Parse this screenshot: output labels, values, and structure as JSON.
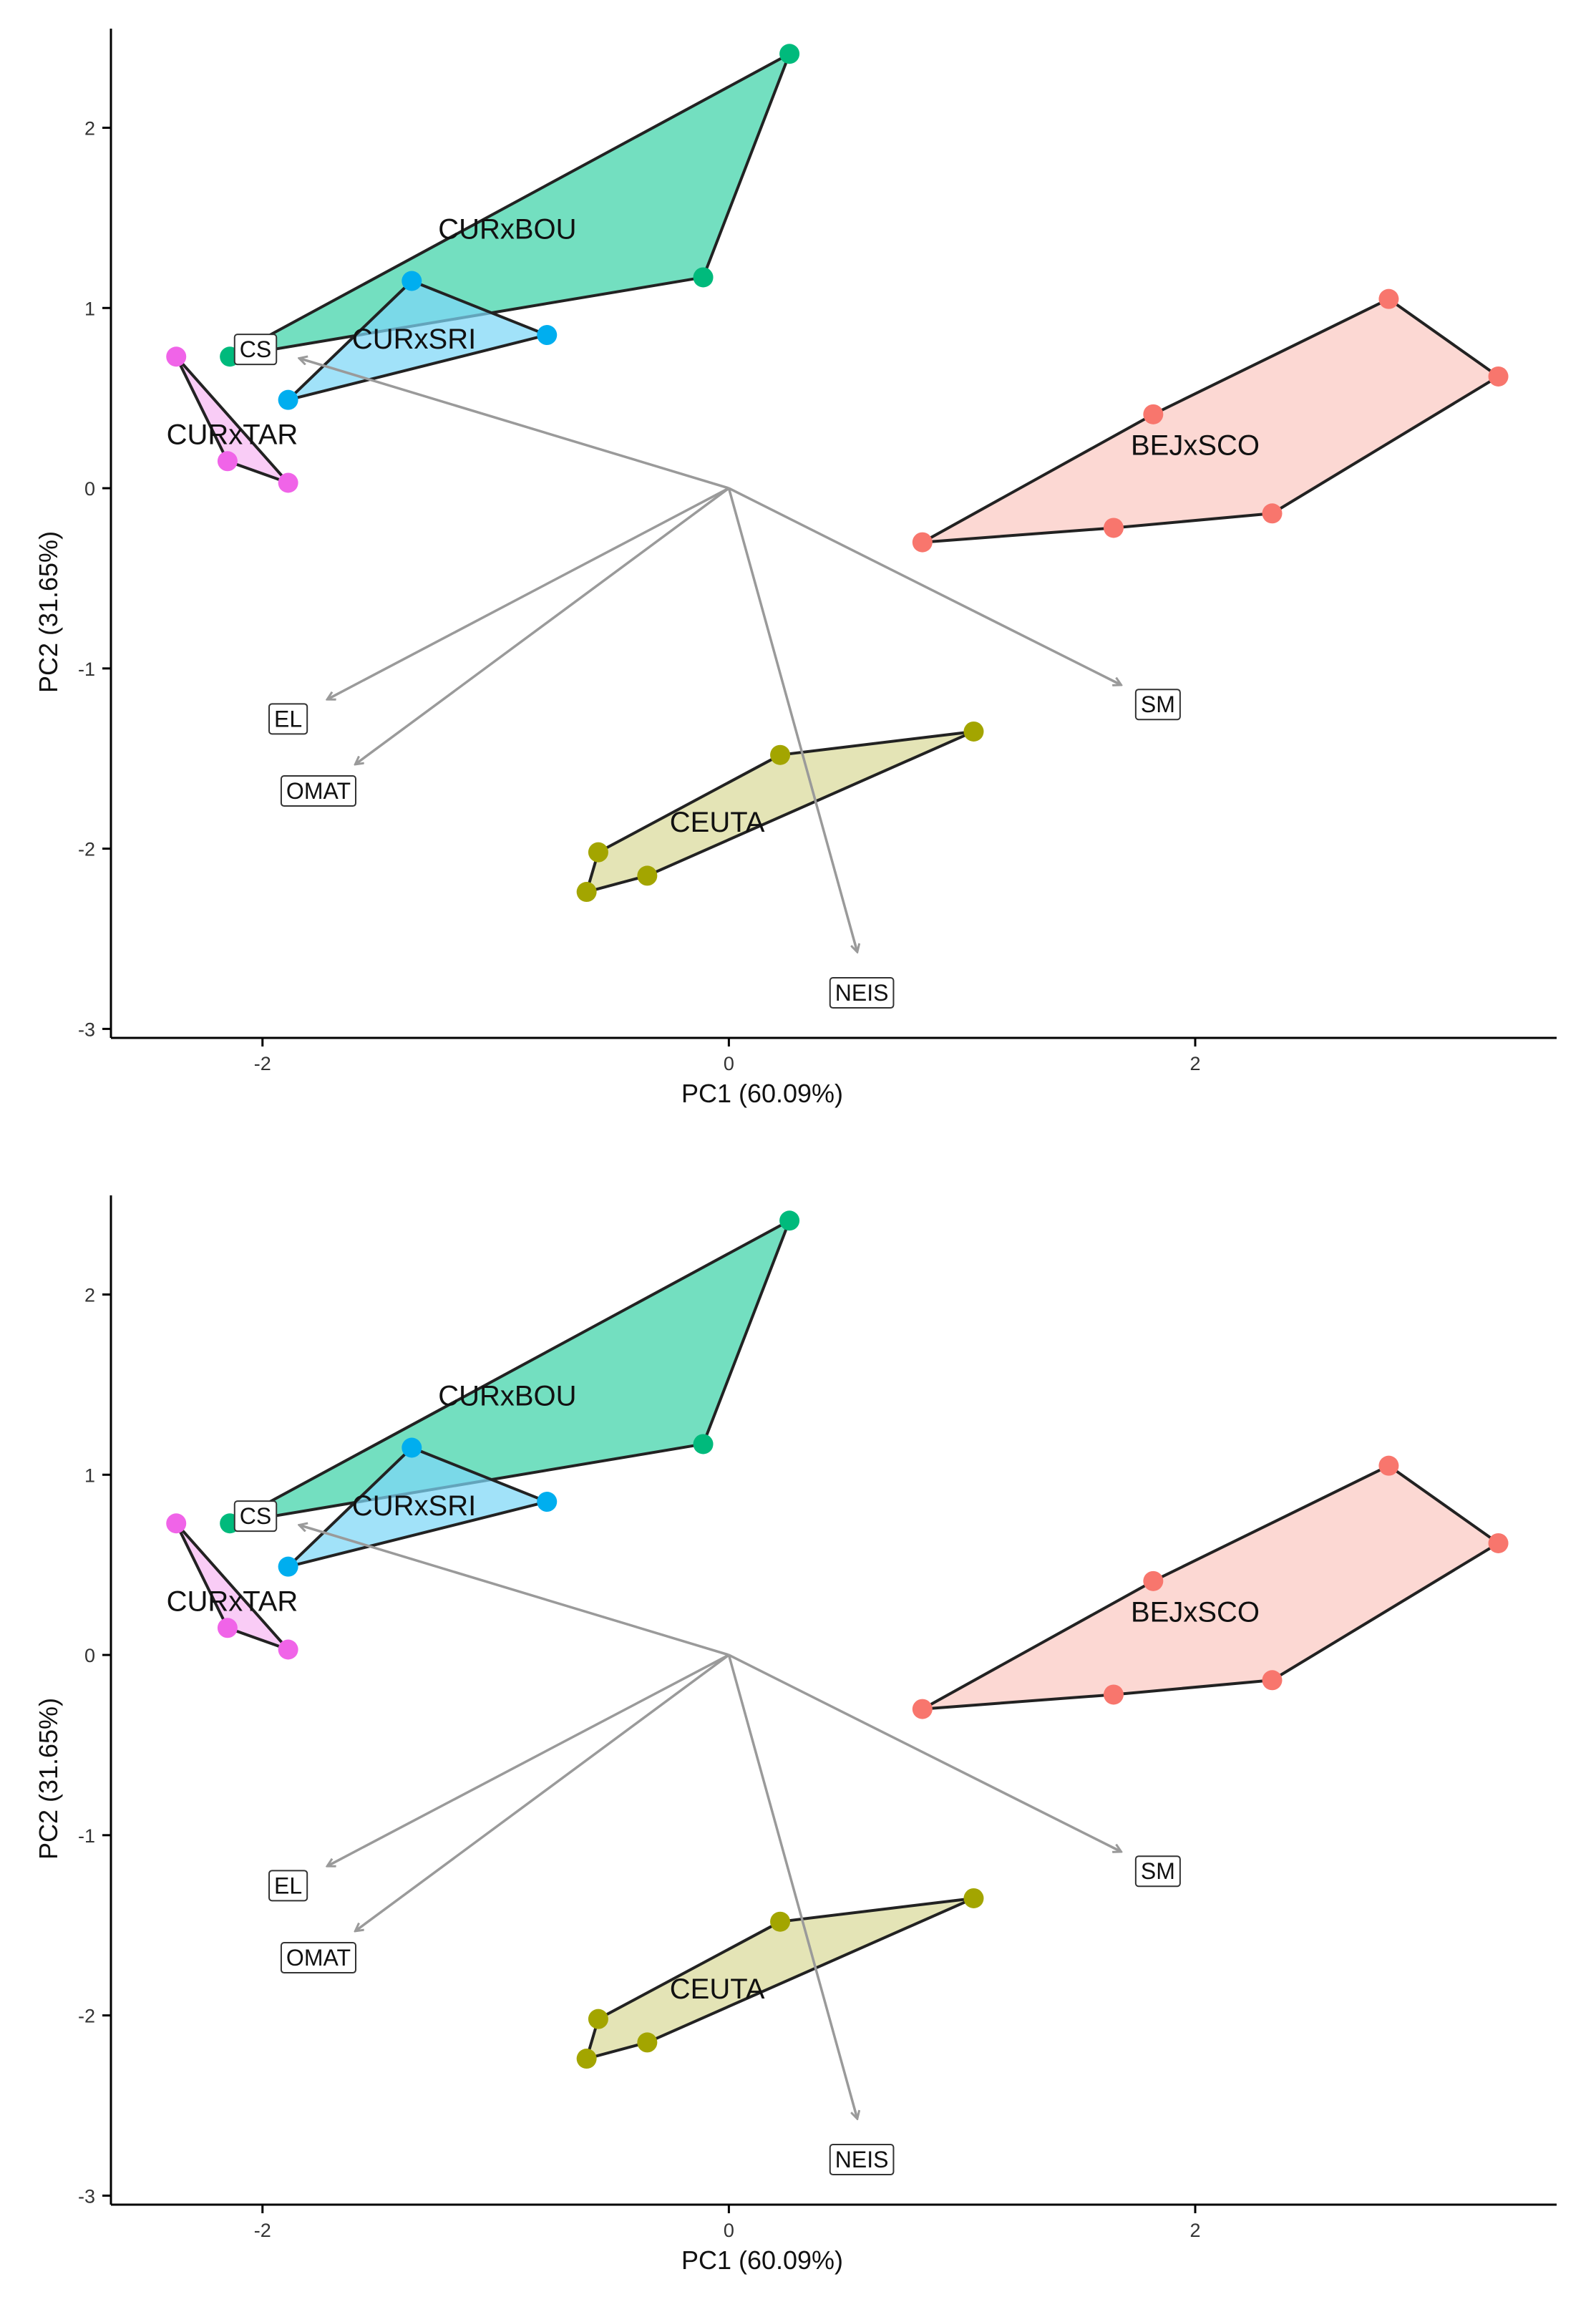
{
  "chart_data": [
    {
      "type": "scatter",
      "title": "",
      "xlabel": "PC1 (60.09%)",
      "ylabel": "PC2 (31.65%)",
      "xlim": [
        -2.65,
        3.55
      ],
      "ylim": [
        -3.05,
        2.55
      ],
      "xticks": [
        -2,
        0,
        2
      ],
      "yticks": [
        -3,
        -2,
        -1,
        0,
        1,
        2
      ],
      "xtick_labels": [
        "-2",
        "0",
        "2"
      ],
      "ytick_labels": [
        "-3",
        "-2",
        "-1",
        "0",
        "1",
        "2"
      ],
      "grid": false,
      "series": [
        {
          "name": "CURxBOU",
          "color": "#00ba7c",
          "fill": "#3dd3a7",
          "label_at": [
            -0.95,
            1.44
          ],
          "points": [
            [
              0.26,
              2.41
            ],
            [
              -0.11,
              1.17
            ],
            [
              -2.14,
              0.73
            ]
          ]
        },
        {
          "name": "CURxSRI",
          "color": "#00aeef",
          "fill": "#7dd7f7",
          "label_at": [
            -1.35,
            0.83
          ],
          "points": [
            [
              -1.36,
              1.15
            ],
            [
              -0.78,
              0.85
            ],
            [
              -1.89,
              0.49
            ]
          ]
        },
        {
          "name": "CURxTAR",
          "color": "#f064e8",
          "fill": "#f7b8f2",
          "label_at": [
            -2.13,
            0.3
          ],
          "points": [
            [
              -2.37,
              0.73
            ],
            [
              -2.15,
              0.15
            ],
            [
              -1.89,
              0.03
            ]
          ]
        },
        {
          "name": "BEJxSCO",
          "color": "#f8766d",
          "fill": "#fbc9c2",
          "label_at": [
            2.0,
            0.24
          ],
          "points": [
            [
              2.83,
              1.05
            ],
            [
              3.3,
              0.62
            ],
            [
              2.33,
              -0.14
            ],
            [
              1.65,
              -0.22
            ],
            [
              0.83,
              -0.3
            ],
            [
              1.82,
              0.41
            ]
          ]
        },
        {
          "name": "CEUTA",
          "color": "#a3a500",
          "fill": "#d9d99a",
          "label_at": [
            -0.05,
            -1.85
          ],
          "points": [
            [
              1.05,
              -1.35
            ],
            [
              0.22,
              -1.48
            ],
            [
              -0.56,
              -2.02
            ],
            [
              -0.61,
              -2.24
            ],
            [
              -0.35,
              -2.15
            ]
          ]
        }
      ],
      "loadings": [
        {
          "name": "CS",
          "x": -1.84,
          "y": 0.72,
          "label_at": [
            -2.03,
            0.77
          ]
        },
        {
          "name": "EL",
          "x": -1.72,
          "y": -1.17,
          "label_at": [
            -1.89,
            -1.28
          ]
        },
        {
          "name": "OMAT",
          "x": -1.6,
          "y": -1.53,
          "label_at": [
            -1.76,
            -1.68
          ]
        },
        {
          "name": "NEIS",
          "x": 0.55,
          "y": -2.57,
          "label_at": [
            0.57,
            -2.8
          ]
        },
        {
          "name": "SM",
          "x": 1.68,
          "y": -1.09,
          "label_at": [
            1.84,
            -1.2
          ]
        }
      ]
    },
    {
      "type": "scatter",
      "title": "",
      "xlabel": "PC1 (60.09%)",
      "ylabel": "PC2 (31.65%)",
      "xlim": [
        -2.65,
        3.55
      ],
      "ylim": [
        -3.05,
        2.55
      ],
      "xticks": [
        -2,
        0,
        2
      ],
      "yticks": [
        -3,
        -2,
        -1,
        0,
        1,
        2
      ],
      "xtick_labels": [
        "-2",
        "0",
        "2"
      ],
      "ytick_labels": [
        "-3",
        "-2",
        "-1",
        "0",
        "1",
        "2"
      ],
      "grid": false,
      "series": [
        {
          "name": "CURxBOU",
          "color": "#00ba7c",
          "fill": "#3dd3a7",
          "label_at": [
            -0.95,
            1.44
          ],
          "points": [
            [
              0.26,
              2.41
            ],
            [
              -0.11,
              1.17
            ],
            [
              -2.14,
              0.73
            ]
          ]
        },
        {
          "name": "CURxSRI",
          "color": "#00aeef",
          "fill": "#7dd7f7",
          "label_at": [
            -1.35,
            0.83
          ],
          "points": [
            [
              -1.36,
              1.15
            ],
            [
              -0.78,
              0.85
            ],
            [
              -1.89,
              0.49
            ]
          ]
        },
        {
          "name": "CURxTAR",
          "color": "#f064e8",
          "fill": "#f7b8f2",
          "label_at": [
            -2.13,
            0.3
          ],
          "points": [
            [
              -2.37,
              0.73
            ],
            [
              -2.15,
              0.15
            ],
            [
              -1.89,
              0.03
            ]
          ]
        },
        {
          "name": "BEJxSCO",
          "color": "#f8766d",
          "fill": "#fbc9c2",
          "label_at": [
            2.0,
            0.24
          ],
          "points": [
            [
              2.83,
              1.05
            ],
            [
              3.3,
              0.62
            ],
            [
              2.33,
              -0.14
            ],
            [
              1.65,
              -0.22
            ],
            [
              0.83,
              -0.3
            ],
            [
              1.82,
              0.41
            ]
          ]
        },
        {
          "name": "CEUTA",
          "color": "#a3a500",
          "fill": "#d9d99a",
          "label_at": [
            -0.05,
            -1.85
          ],
          "points": [
            [
              1.05,
              -1.35
            ],
            [
              0.22,
              -1.48
            ],
            [
              -0.56,
              -2.02
            ],
            [
              -0.61,
              -2.24
            ],
            [
              -0.35,
              -2.15
            ]
          ]
        }
      ],
      "loadings": [
        {
          "name": "CS",
          "x": -1.84,
          "y": 0.72,
          "label_at": [
            -2.03,
            0.77
          ]
        },
        {
          "name": "EL",
          "x": -1.72,
          "y": -1.17,
          "label_at": [
            -1.89,
            -1.28
          ]
        },
        {
          "name": "OMAT",
          "x": -1.6,
          "y": -1.53,
          "label_at": [
            -1.76,
            -1.68
          ]
        },
        {
          "name": "NEIS",
          "x": 0.55,
          "y": -2.57,
          "label_at": [
            0.57,
            -2.8
          ]
        },
        {
          "name": "SM",
          "x": 1.68,
          "y": -1.09,
          "label_at": [
            1.84,
            -1.2
          ]
        }
      ]
    }
  ]
}
